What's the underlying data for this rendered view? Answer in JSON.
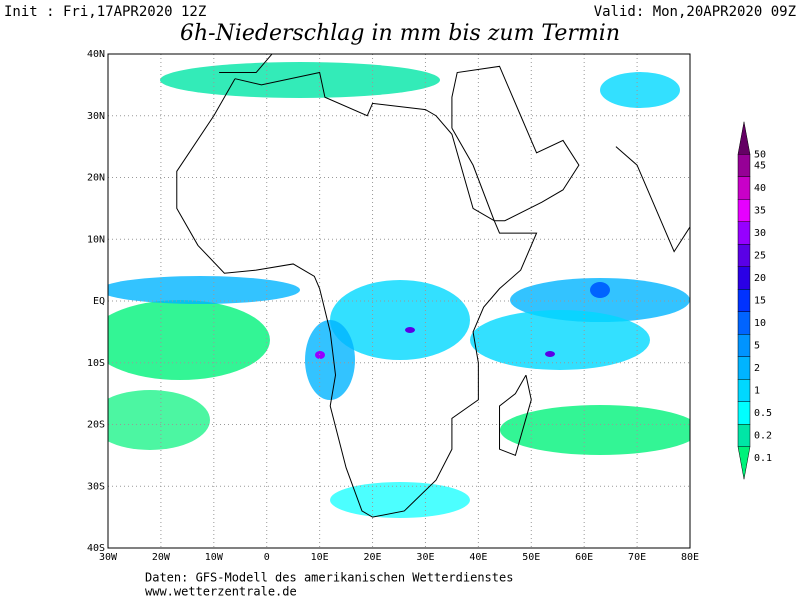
{
  "header": {
    "init": "Init : Fri,17APR2020 12Z",
    "valid": "Valid: Mon,20APR2020 09Z",
    "title": "6h-Niederschlag in mm bis zum Termin"
  },
  "map": {
    "lon_labels": [
      "30W",
      "20W",
      "10W",
      "0",
      "10E",
      "20E",
      "30E",
      "40E",
      "50E",
      "60E",
      "70E",
      "80E"
    ],
    "lat_labels": [
      "40N",
      "30N",
      "20N",
      "10N",
      "EQ",
      "10S",
      "20S",
      "30S",
      "40S"
    ]
  },
  "colorbar": {
    "levels": [
      {
        "label": "0.1",
        "color": "#00f27a"
      },
      {
        "label": "0.2",
        "color": "#00e6a6"
      },
      {
        "label": "0.5",
        "color": "#00ffff"
      },
      {
        "label": "1",
        "color": "#00d8ff"
      },
      {
        "label": "2",
        "color": "#00b4ff"
      },
      {
        "label": "5",
        "color": "#0094ff"
      },
      {
        "label": "10",
        "color": "#0064ff"
      },
      {
        "label": "15",
        "color": "#0032ff"
      },
      {
        "label": "20",
        "color": "#2a00e6"
      },
      {
        "label": "25",
        "color": "#5a00e6"
      },
      {
        "label": "30",
        "color": "#9600ff"
      },
      {
        "label": "35",
        "color": "#e600ff"
      },
      {
        "label": "40",
        "color": "#c800c8"
      },
      {
        "label": "45",
        "color": "#960096"
      },
      {
        "label": "50",
        "color": "#640064"
      }
    ]
  },
  "footer": {
    "line1": "Daten: GFS-Modell des amerikanischen Wetterdienstes",
    "line2": "www.wetterzentrale.de"
  }
}
